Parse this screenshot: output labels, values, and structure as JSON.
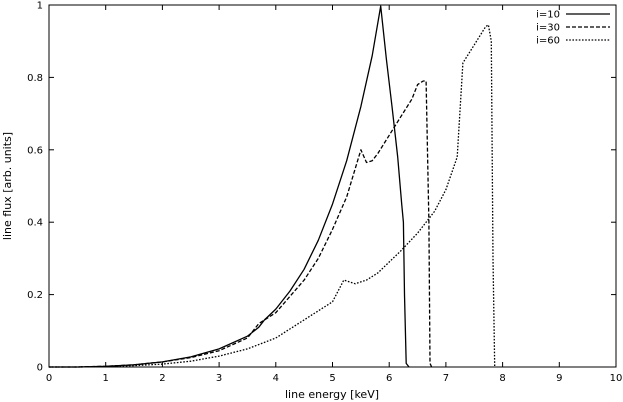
{
  "chart_data": {
    "type": "line",
    "title": "",
    "xlabel": "line energy [keV]",
    "ylabel": "line flux [arb. units]",
    "xlim": [
      0,
      10
    ],
    "ylim": [
      0,
      1
    ],
    "x_ticks": [
      "0",
      "1",
      "2",
      "3",
      "4",
      "5",
      "6",
      "7",
      "8",
      "9",
      "10"
    ],
    "y_ticks": [
      "0",
      "0.2",
      "0.4",
      "0.6",
      "0.8",
      "1"
    ],
    "grid": false,
    "legend_position": "top-right",
    "series": [
      {
        "name": "i=10",
        "dash": "solid",
        "x": [
          0,
          0.5,
          1,
          1.5,
          2,
          2.5,
          3,
          3.5,
          3.7,
          3.8,
          4,
          4.25,
          4.5,
          4.75,
          5,
          5.25,
          5.5,
          5.7,
          5.85,
          5.95,
          6.05,
          6.15,
          6.22,
          6.25,
          6.27,
          6.3,
          6.35
        ],
        "y": [
          0,
          0,
          0.002,
          0.006,
          0.014,
          0.028,
          0.05,
          0.085,
          0.11,
          0.13,
          0.16,
          0.21,
          0.27,
          0.35,
          0.45,
          0.57,
          0.72,
          0.86,
          0.997,
          0.85,
          0.72,
          0.58,
          0.45,
          0.4,
          0.2,
          0.01,
          0
        ]
      },
      {
        "name": "i=30",
        "dash": "dashed",
        "x": [
          0,
          0.5,
          1,
          1.5,
          2,
          2.5,
          3,
          3.5,
          3.7,
          4,
          4.5,
          4.75,
          5,
          5.25,
          5.5,
          5.6,
          5.7,
          5.8,
          6,
          6.2,
          6.4,
          6.5,
          6.6,
          6.65,
          6.7,
          6.72,
          6.75
        ],
        "y": [
          0,
          0,
          0.002,
          0.006,
          0.014,
          0.026,
          0.045,
          0.08,
          0.12,
          0.15,
          0.24,
          0.3,
          0.38,
          0.47,
          0.6,
          0.565,
          0.57,
          0.59,
          0.64,
          0.69,
          0.74,
          0.78,
          0.79,
          0.79,
          0.4,
          0.01,
          0
        ]
      },
      {
        "name": "i=60",
        "dash": "dotted",
        "x": [
          0,
          0.5,
          1,
          1.5,
          2,
          2.5,
          3,
          3.5,
          4,
          4.5,
          5,
          5.2,
          5.4,
          5.6,
          5.8,
          6,
          6.2,
          6.5,
          6.8,
          7,
          7.2,
          7.3,
          7.5,
          7.7,
          7.75,
          7.8,
          7.83,
          7.86
        ],
        "y": [
          0,
          0,
          0.001,
          0.004,
          0.008,
          0.016,
          0.03,
          0.05,
          0.08,
          0.13,
          0.18,
          0.24,
          0.23,
          0.24,
          0.26,
          0.29,
          0.32,
          0.37,
          0.43,
          0.49,
          0.58,
          0.84,
          0.89,
          0.94,
          0.945,
          0.9,
          0.3,
          0
        ]
      }
    ]
  }
}
